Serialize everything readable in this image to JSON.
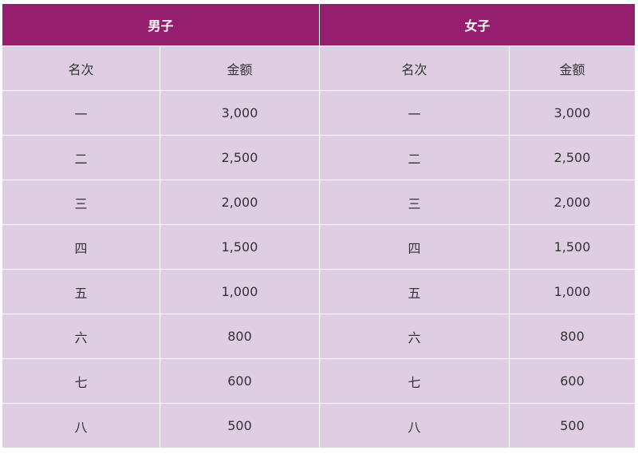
{
  "colors": {
    "header": "#951E6E",
    "cell": "#DFCDE4"
  },
  "groups": [
    "男子",
    "女子"
  ],
  "columns": [
    "名次",
    "金额"
  ],
  "rows": [
    {
      "rank": "一",
      "men": "3,000",
      "women": "3,000"
    },
    {
      "rank": "二",
      "men": "2,500",
      "women": "2,500"
    },
    {
      "rank": "三",
      "men": "2,000",
      "women": "2,000"
    },
    {
      "rank": "四",
      "men": "1,500",
      "women": "1,500"
    },
    {
      "rank": "五",
      "men": "1,000",
      "women": "1,000"
    },
    {
      "rank": "六",
      "men": "800",
      "women": "800"
    },
    {
      "rank": "七",
      "men": "600",
      "women": "600"
    },
    {
      "rank": "八",
      "men": "500",
      "women": "500"
    }
  ]
}
